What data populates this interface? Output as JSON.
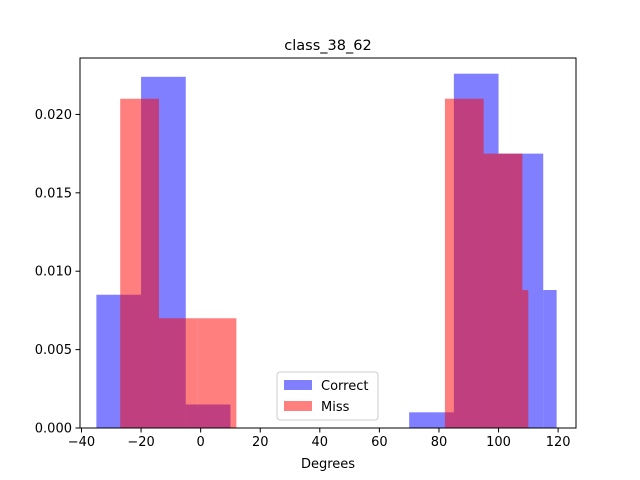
{
  "chart_data": {
    "type": "bar",
    "title": "class_38_62",
    "xlabel": "Degrees",
    "ylabel": "",
    "xlim": [
      -40.5,
      126
    ],
    "ylim": [
      0,
      0.0236
    ],
    "xticks": [
      "−40",
      "−20",
      "0",
      "20",
      "40",
      "60",
      "80",
      "100",
      "120"
    ],
    "xtick_values": [
      -40,
      -20,
      0,
      20,
      40,
      60,
      80,
      100,
      120
    ],
    "yticks": [
      "0.000",
      "0.005",
      "0.010",
      "0.015",
      "0.020"
    ],
    "ytick_values": [
      0,
      0.005,
      0.01,
      0.015,
      0.02
    ],
    "legend_position": "bottom-center",
    "series": [
      {
        "name": "Correct",
        "color": "#0000ff",
        "alpha": 0.5,
        "bins": [
          {
            "x0": -35,
            "x1": -20,
            "value": 0.0085
          },
          {
            "x0": -20,
            "x1": -5,
            "value": 0.0224
          },
          {
            "x0": -5,
            "x1": 10,
            "value": 0.0015
          },
          {
            "x0": 10,
            "x1": 25,
            "value": 0.0
          },
          {
            "x0": 25,
            "x1": 40,
            "value": 0.0
          },
          {
            "x0": 40,
            "x1": 55,
            "value": 0.0
          },
          {
            "x0": 55,
            "x1": 70,
            "value": 0.0
          },
          {
            "x0": 70,
            "x1": 85,
            "value": 0.001
          },
          {
            "x0": 85,
            "x1": 100,
            "value": 0.0226
          },
          {
            "x0": 100,
            "x1": 115,
            "value": 0.0175
          },
          {
            "x0": 115,
            "x1": 119.5,
            "value": 0.0088
          }
        ]
      },
      {
        "name": "Miss",
        "color": "#ff0000",
        "alpha": 0.5,
        "bins": [
          {
            "x0": -27,
            "x1": -14,
            "value": 0.021
          },
          {
            "x0": -14,
            "x1": -1,
            "value": 0.007
          },
          {
            "x0": -1,
            "x1": 12,
            "value": 0.007
          },
          {
            "x0": 82,
            "x1": 95,
            "value": 0.021
          },
          {
            "x0": 95,
            "x1": 108,
            "value": 0.0175
          },
          {
            "x0": 108,
            "x1": 110,
            "value": 0.0088
          }
        ]
      }
    ]
  }
}
